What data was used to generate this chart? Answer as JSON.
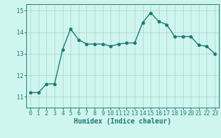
{
  "x": [
    0,
    1,
    2,
    3,
    4,
    5,
    6,
    7,
    8,
    9,
    10,
    11,
    12,
    13,
    14,
    15,
    16,
    17,
    18,
    19,
    20,
    21,
    22,
    23
  ],
  "y": [
    11.2,
    11.2,
    11.6,
    11.6,
    13.2,
    14.15,
    13.65,
    13.45,
    13.45,
    13.45,
    13.35,
    13.45,
    13.5,
    13.5,
    14.45,
    14.9,
    14.5,
    14.35,
    13.8,
    13.8,
    13.8,
    13.4,
    13.35,
    13.0
  ],
  "line_color": "#1a7a6e",
  "marker": "o",
  "markersize": 2.5,
  "linewidth": 1.0,
  "xlabel": "Humidex (Indice chaleur)",
  "xlim": [
    -0.5,
    23.5
  ],
  "ylim": [
    10.5,
    15.3
  ],
  "yticks": [
    11,
    12,
    13,
    14,
    15
  ],
  "xticks": [
    0,
    1,
    2,
    3,
    4,
    5,
    6,
    7,
    8,
    9,
    10,
    11,
    12,
    13,
    14,
    15,
    16,
    17,
    18,
    19,
    20,
    21,
    22,
    23
  ],
  "bg_color": "#cff5ef",
  "grid_color": "#aed8d2",
  "tick_color": "#1a7a6e",
  "xlabel_fontsize": 7,
  "tick_fontsize": 6
}
